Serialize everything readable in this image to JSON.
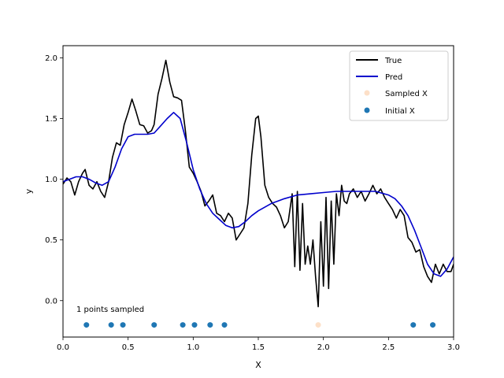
{
  "chart_data": {
    "type": "line",
    "xlabel": "X",
    "ylabel": "y",
    "xlim": [
      0.0,
      3.0
    ],
    "ylim": [
      -0.3,
      2.1
    ],
    "xticks": [
      "0.0",
      "0.5",
      "1.0",
      "1.5",
      "2.0",
      "2.5",
      "3.0"
    ],
    "yticks": [
      "0.0",
      "0.5",
      "1.0",
      "1.5",
      "2.0"
    ],
    "annotation": "1 points sampled",
    "legend_position": "top-right",
    "colors": {
      "true": "#000000",
      "pred": "#0000cc",
      "sampled": "#fde0c8",
      "initial": "#1f77b4"
    },
    "series": [
      {
        "name": "True",
        "x": [
          0.0,
          0.03,
          0.06,
          0.09,
          0.12,
          0.15,
          0.17,
          0.2,
          0.23,
          0.26,
          0.29,
          0.32,
          0.35,
          0.38,
          0.41,
          0.44,
          0.47,
          0.5,
          0.53,
          0.56,
          0.59,
          0.62,
          0.65,
          0.68,
          0.7,
          0.73,
          0.76,
          0.79,
          0.82,
          0.85,
          0.88,
          0.91,
          0.94,
          0.97,
          1.0,
          1.03,
          1.06,
          1.09,
          1.12,
          1.15,
          1.18,
          1.21,
          1.24,
          1.27,
          1.3,
          1.33,
          1.36,
          1.39,
          1.42,
          1.45,
          1.48,
          1.5,
          1.52,
          1.55,
          1.58,
          1.61,
          1.64,
          1.67,
          1.7,
          1.73,
          1.76,
          1.78,
          1.8,
          1.82,
          1.84,
          1.86,
          1.88,
          1.9,
          1.92,
          1.94,
          1.96,
          1.98,
          2.0,
          2.02,
          2.04,
          2.06,
          2.08,
          2.1,
          2.12,
          2.14,
          2.16,
          2.18,
          2.2,
          2.23,
          2.26,
          2.29,
          2.32,
          2.35,
          2.38,
          2.41,
          2.44,
          2.47,
          2.5,
          2.53,
          2.56,
          2.59,
          2.62,
          2.65,
          2.68,
          2.71,
          2.74,
          2.77,
          2.8,
          2.83,
          2.86,
          2.89,
          2.92,
          2.95,
          2.98,
          3.0
        ],
        "y": [
          0.96,
          1.01,
          0.98,
          0.87,
          0.98,
          1.05,
          1.08,
          0.95,
          0.92,
          0.98,
          0.9,
          0.85,
          0.98,
          1.18,
          1.3,
          1.28,
          1.45,
          1.55,
          1.66,
          1.56,
          1.45,
          1.44,
          1.38,
          1.4,
          1.45,
          1.7,
          1.83,
          1.98,
          1.8,
          1.68,
          1.67,
          1.65,
          1.4,
          1.1,
          1.05,
          0.98,
          0.9,
          0.78,
          0.82,
          0.87,
          0.72,
          0.7,
          0.65,
          0.72,
          0.68,
          0.5,
          0.55,
          0.6,
          0.8,
          1.2,
          1.5,
          1.52,
          1.35,
          0.95,
          0.85,
          0.8,
          0.77,
          0.7,
          0.6,
          0.65,
          0.88,
          0.28,
          0.9,
          0.25,
          0.8,
          0.3,
          0.45,
          0.3,
          0.5,
          0.2,
          -0.05,
          0.65,
          0.12,
          0.85,
          0.1,
          0.82,
          0.3,
          0.88,
          0.7,
          0.95,
          0.82,
          0.8,
          0.88,
          0.92,
          0.85,
          0.9,
          0.82,
          0.88,
          0.95,
          0.88,
          0.92,
          0.85,
          0.8,
          0.75,
          0.68,
          0.75,
          0.7,
          0.52,
          0.48,
          0.4,
          0.42,
          0.28,
          0.2,
          0.15,
          0.3,
          0.22,
          0.3,
          0.24,
          0.24,
          0.3
        ]
      },
      {
        "name": "Pred",
        "x": [
          0.0,
          0.05,
          0.1,
          0.15,
          0.2,
          0.25,
          0.3,
          0.35,
          0.4,
          0.45,
          0.5,
          0.55,
          0.6,
          0.65,
          0.7,
          0.75,
          0.8,
          0.85,
          0.9,
          0.95,
          1.0,
          1.05,
          1.1,
          1.15,
          1.2,
          1.25,
          1.3,
          1.35,
          1.4,
          1.45,
          1.5,
          1.6,
          1.7,
          1.8,
          1.9,
          2.0,
          2.1,
          2.2,
          2.3,
          2.4,
          2.5,
          2.55,
          2.6,
          2.65,
          2.7,
          2.75,
          2.8,
          2.85,
          2.9,
          2.95,
          3.0
        ],
        "y": [
          0.98,
          1.0,
          1.02,
          1.02,
          1.0,
          0.97,
          0.95,
          0.98,
          1.1,
          1.25,
          1.35,
          1.37,
          1.37,
          1.37,
          1.38,
          1.44,
          1.5,
          1.55,
          1.5,
          1.3,
          1.08,
          0.92,
          0.8,
          0.72,
          0.67,
          0.62,
          0.6,
          0.61,
          0.65,
          0.7,
          0.74,
          0.8,
          0.84,
          0.87,
          0.88,
          0.89,
          0.9,
          0.9,
          0.9,
          0.9,
          0.87,
          0.84,
          0.78,
          0.7,
          0.58,
          0.44,
          0.3,
          0.22,
          0.2,
          0.26,
          0.36
        ]
      },
      {
        "name": "Sampled X",
        "x": [
          1.96
        ],
        "y": [
          -0.2
        ]
      },
      {
        "name": "Initial X",
        "x": [
          0.18,
          0.37,
          0.46,
          0.7,
          0.92,
          1.01,
          1.13,
          1.24,
          2.69,
          2.84
        ],
        "y": [
          -0.2,
          -0.2,
          -0.2,
          -0.2,
          -0.2,
          -0.2,
          -0.2,
          -0.2,
          -0.2,
          -0.2
        ]
      }
    ]
  }
}
